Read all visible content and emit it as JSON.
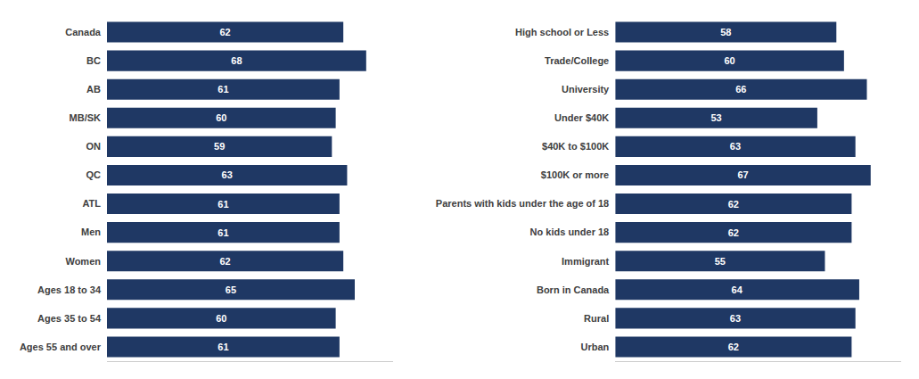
{
  "chart_data": [
    {
      "type": "bar",
      "orientation": "horizontal",
      "categories": [
        "Canada",
        "BC",
        "AB",
        "MB/SK",
        "ON",
        "QC",
        "ATL",
        "Men",
        "Women",
        "Ages 18 to 34",
        "Ages 35 to 54",
        "Ages 55 and over"
      ],
      "values": [
        62,
        68,
        61,
        60,
        59,
        63,
        61,
        61,
        62,
        65,
        60,
        61
      ],
      "color": "#1F3864",
      "xlim": [
        0,
        75
      ],
      "data_labels": true,
      "tick_labels": "y",
      "grid": false
    },
    {
      "type": "bar",
      "orientation": "horizontal",
      "categories": [
        "High school or Less",
        "Trade/College",
        "University",
        "Under $40K",
        "$40K to $100K",
        "$100K or more",
        "Parents with kids under the age of 18",
        "No kids under 18",
        "Immigrant",
        "Born in Canada",
        "Rural",
        "Urban"
      ],
      "values": [
        58,
        60,
        66,
        53,
        63,
        67,
        62,
        62,
        55,
        64,
        63,
        62
      ],
      "color": "#1F3864",
      "xlim": [
        0,
        75
      ],
      "data_labels": true,
      "tick_labels": "y",
      "grid": false
    }
  ]
}
